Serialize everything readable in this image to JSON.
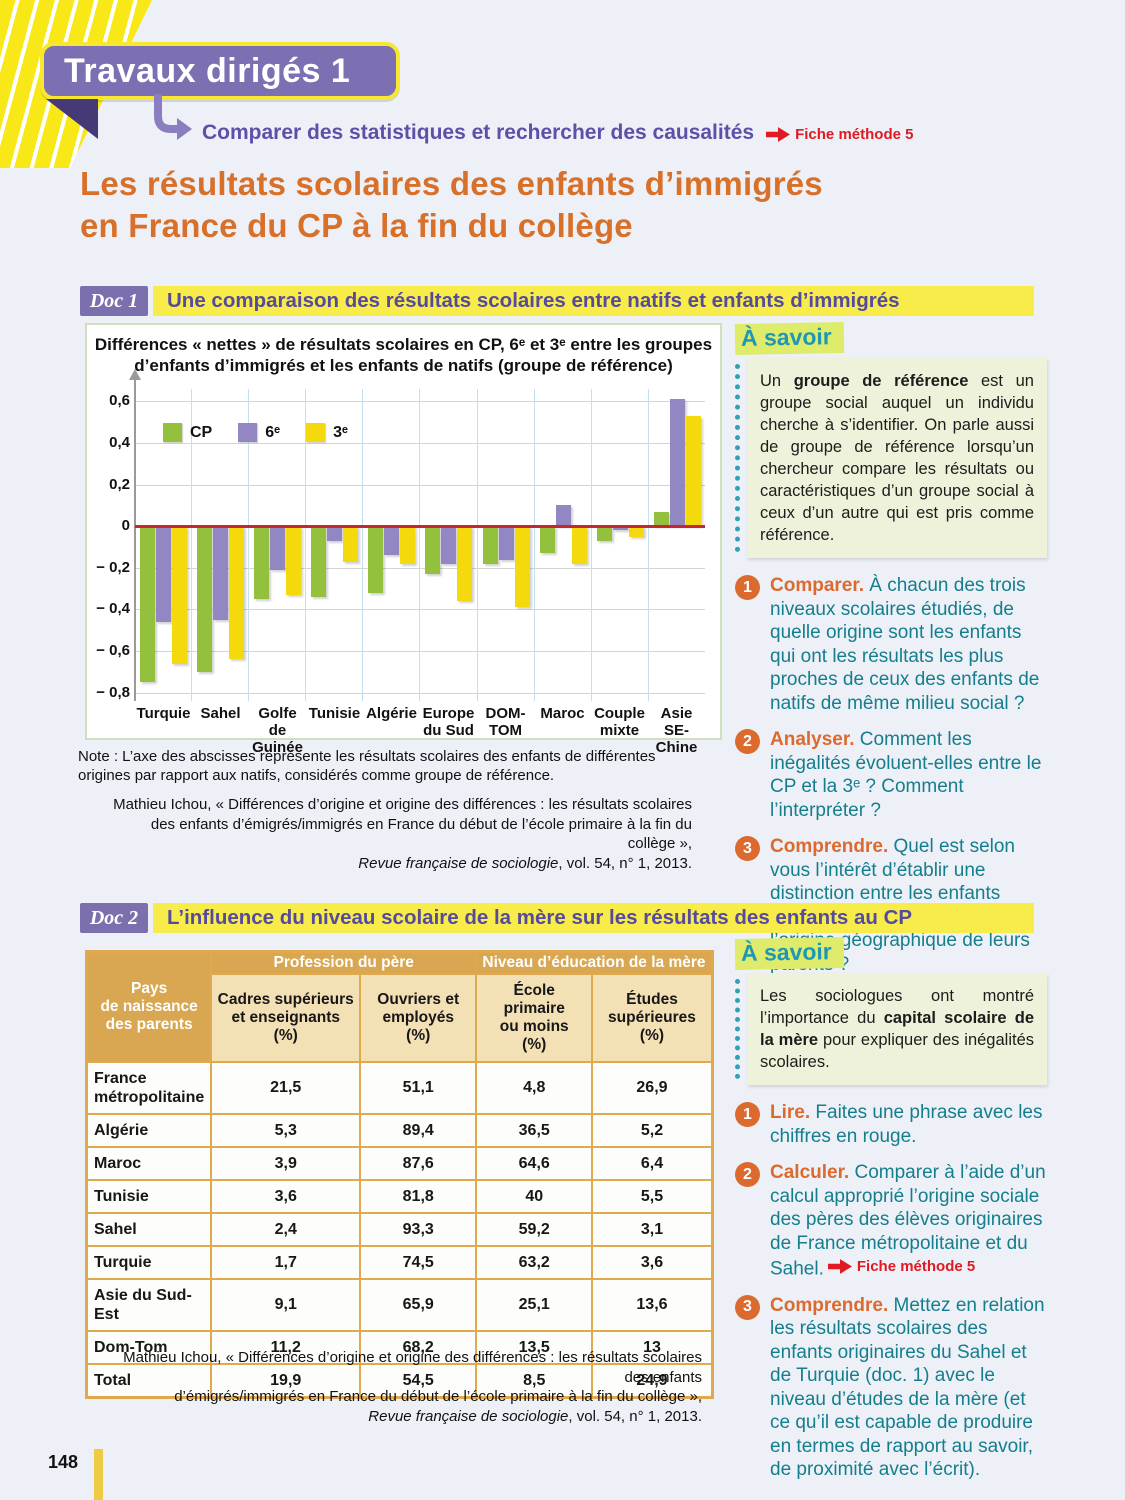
{
  "page": {
    "number": "148"
  },
  "header": {
    "banner": "Travaux dirigés 1",
    "subtitle": "Comparer des statistiques et rechercher des causalités",
    "method_link": "Fiche méthode 5",
    "title_line1": "Les résultats scolaires des enfants d’immigrés",
    "title_line2": "en France du CP à la fin du collège"
  },
  "chart_data": {
    "type": "bar",
    "title_line1": "Différences « nettes » de résultats scolaires en CP, 6ᵉ et 3ᵉ entre les groupes",
    "title_line2": "d’enfants d’immigrés et les enfants de natifs (groupe de référence)",
    "categories": [
      "Turquie",
      "Sahel",
      "Golfe de\nGuinée",
      "Tunisie",
      "Algérie",
      "Europe\ndu Sud",
      "DOM-\nTOM",
      "Maroc",
      "Couple\nmixte",
      "Asie SE-\nChine"
    ],
    "series": [
      {
        "name": "CP",
        "color": "#94C13D",
        "values": [
          -0.75,
          -0.7,
          -0.35,
          -0.34,
          -0.32,
          -0.23,
          -0.18,
          -0.13,
          -0.07,
          0.07
        ]
      },
      {
        "name": "6ᵉ",
        "color": "#9287C3",
        "values": [
          -0.46,
          -0.45,
          -0.21,
          -0.07,
          -0.14,
          -0.18,
          -0.16,
          0.1,
          -0.02,
          0.61
        ]
      },
      {
        "name": "3ᵉ",
        "color": "#F4D90C",
        "values": [
          -0.66,
          -0.64,
          -0.33,
          -0.17,
          -0.18,
          -0.36,
          -0.39,
          -0.18,
          -0.05,
          0.53
        ]
      }
    ],
    "ylim": [
      -0.8,
      0.6
    ],
    "tick_values": [
      0.6,
      0.4,
      0.2,
      0,
      -0.2,
      -0.4,
      -0.6,
      -0.8
    ],
    "tick_labels": [
      "0,6",
      "0,4",
      "0,2",
      "0",
      "− 0,2",
      "− 0,4",
      "− 0,6",
      "− 0,8"
    ],
    "grid": true,
    "legend_position": "top-left-inside",
    "zero_line_color": "#C9252C"
  },
  "doc1": {
    "badge": "Doc 1",
    "heading": "Une comparaison des résultats scolaires entre natifs et enfants d’immigrés",
    "note": "Note : L’axe des abscisses représente les résultats scolaires des enfants de différentes origines par rapport aux natifs, considérés comme groupe de référence.",
    "source": {
      "line1": "Mathieu Ichou, « Différences d’origine et origine des différences : les résultats scolaires",
      "line2": "des enfants d’émigrés/immigrés en France du début de l’école primaire à la fin du collège »,",
      "journal": "Revue française de sociologie",
      "tail": ", vol. 54, n° 1, 2013."
    },
    "asavoir_title": "À savoir",
    "asavoir": {
      "pre": "Un ",
      "bold": "groupe de référence",
      "post": " est un groupe social auquel un individu cherche à s’identifier. On parle aussi de groupe de référence lorsqu’un chercheur compare les résultats ou caractéristiques d’un groupe social à ceux d’un autre qui est pris comme référence."
    },
    "questions": [
      {
        "num": "1",
        "verb": "Comparer.",
        "text": " À chacun des trois niveaux scolaires étudiés, de quelle origine sont les enfants qui ont les résultats les plus proches de ceux des enfants de natifs de même milieu social ?"
      },
      {
        "num": "2",
        "verb": "Analyser.",
        "text": " Comment les inégalités évoluent-elles entre le CP et la 3ᵉ ? Comment l’interpréter ?"
      },
      {
        "num": "3",
        "verb": "Comprendre.",
        "text": " Quel est selon vous l’intérêt d’établir une distinction entre les enfants d’immigrés en fonction de l’origine géographique de leurs parents ?"
      }
    ]
  },
  "doc2": {
    "badge": "Doc 2",
    "heading": "L’influence du niveau scolaire de la mère sur les résultats des enfants au CP",
    "table": {
      "corner": "Pays\nde naissance\ndes parents",
      "group1": "Profession du père",
      "group2": "Niveau d’éducation de la mère",
      "cols": [
        "Cadres supérieurs\net enseignants\n(%)",
        "Ouvriers et\nemployés\n(%)",
        "École primaire\nou moins\n(%)",
        "Études\nsupérieures\n(%)"
      ],
      "rows": [
        {
          "label": "France\nmétropolitaine",
          "values": [
            {
              "v": "21,5"
            },
            {
              "v": "51,1"
            },
            {
              "v": "4,8"
            },
            {
              "v": "26,9",
              "red": true
            }
          ]
        },
        {
          "label": "Algérie",
          "values": [
            {
              "v": "5,3"
            },
            {
              "v": "89,4"
            },
            {
              "v": "36,5"
            },
            {
              "v": "5,2"
            }
          ]
        },
        {
          "label": "Maroc",
          "values": [
            {
              "v": "3,9"
            },
            {
              "v": "87,6"
            },
            {
              "v": "64,6"
            },
            {
              "v": "6,4"
            }
          ]
        },
        {
          "label": "Tunisie",
          "values": [
            {
              "v": "3,6"
            },
            {
              "v": "81,8"
            },
            {
              "v": "40"
            },
            {
              "v": "5,5"
            }
          ]
        },
        {
          "label": "Sahel",
          "values": [
            {
              "v": "2,4"
            },
            {
              "v": "93,3",
              "red": true
            },
            {
              "v": "59,2",
              "red": true
            },
            {
              "v": "3,1"
            }
          ]
        },
        {
          "label": "Turquie",
          "values": [
            {
              "v": "1,7"
            },
            {
              "v": "74,5"
            },
            {
              "v": "63,2"
            },
            {
              "v": "3,6"
            }
          ]
        },
        {
          "label": "Asie du Sud-\nEst",
          "values": [
            {
              "v": "9,1",
              "red": true
            },
            {
              "v": "65,9"
            },
            {
              "v": "25,1"
            },
            {
              "v": "13,6"
            }
          ]
        },
        {
          "label": "Dom-Tom",
          "values": [
            {
              "v": "11,2"
            },
            {
              "v": "68,2"
            },
            {
              "v": "13,5"
            },
            {
              "v": "13"
            }
          ]
        },
        {
          "label": "Total",
          "values": [
            {
              "v": "19,9"
            },
            {
              "v": "54,5"
            },
            {
              "v": "8,5"
            },
            {
              "v": "24,9"
            }
          ]
        }
      ]
    },
    "source": {
      "line1": "Mathieu Ichou, « Différences d’origine et origine des différences : les résultats scolaires des enfants",
      "line2": "d’émigrés/immigrés en France du début de l’école primaire à la fin du collège »,",
      "journal": "Revue française de sociologie",
      "tail": ", vol. 54, n° 1, 2013."
    },
    "asavoir_title": "À savoir",
    "asavoir": {
      "pre": "Les sociologues ont montré l’importance du ",
      "bold": "capital scolaire de la mère",
      "post": " pour expliquer des inégalités scolaires."
    },
    "questions": [
      {
        "num": "1",
        "verb": "Lire.",
        "text": " Faites une phrase avec les chiffres en rouge."
      },
      {
        "num": "2",
        "verb": "Calculer.",
        "text": " Comparer à l’aide d’un calcul approprié l’origine sociale des pères des élèves originaires de France métropolitaine et du Sahel.",
        "method": "Fiche méthode 5"
      },
      {
        "num": "3",
        "verb": "Comprendre.",
        "text": " Mettez en relation les résultats scolaires des enfants originaires du Sahel et de Turquie (doc. 1) avec le niveau d’études de la mère (et ce qu’il est capable de produire en termes de rapport au savoir, de proximité avec l’écrit)."
      }
    ],
    "colors": {
      "accent_orange": "#DC6A2E",
      "question_teal": "#147E8D",
      "table_gold": "#D9A751",
      "highlight_yellow": "#F8EC4B",
      "badge_purple": "#7B6FAE",
      "red_value": "#D6232E"
    }
  }
}
